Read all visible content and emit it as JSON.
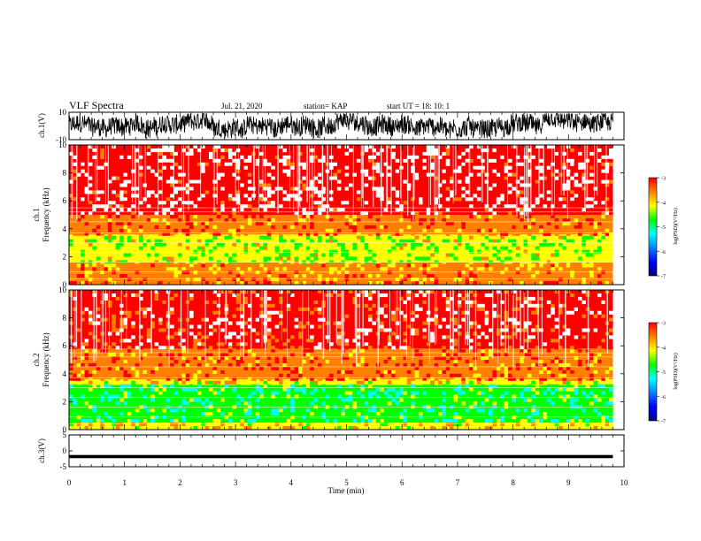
{
  "header": {
    "title": "VLF Spectra",
    "date": "Jul. 21, 2020",
    "station": "station= KAP",
    "start": "start UT = 18: 10: 1"
  },
  "chart_data": [
    {
      "type": "line",
      "panel": "ch1-waveform",
      "ylabel": "ch.1(V)",
      "ylim": [
        -10,
        10
      ],
      "yticks": [
        "10",
        "-10"
      ],
      "xlim": [
        0,
        10
      ],
      "x_end": 9.8,
      "series": [
        {
          "values": []
        }
      ]
    },
    {
      "type": "heatmap",
      "panel": "ch1-spectrogram",
      "ylabel_line1": "ch.1",
      "ylabel_line2": "Frequency (kHz)",
      "ylim": [
        0,
        10
      ],
      "yticks": [
        "0",
        "2",
        "4",
        "6",
        "8",
        "10"
      ],
      "xlim": [
        0,
        10
      ],
      "x_end": 9.8,
      "bands": [
        {
          "from": 0.0,
          "to": 0.9,
          "level": -4.0
        },
        {
          "from": 0.9,
          "to": 1.6,
          "level": -4.2
        },
        {
          "from": 1.6,
          "to": 3.6,
          "level": -4.7
        },
        {
          "from": 3.6,
          "to": 5.0,
          "level": -3.9
        },
        {
          "from": 5.0,
          "to": 10.0,
          "level": -3.3
        }
      ],
      "colorbar": {
        "label": "log(PSD)(V²/Hz)",
        "ticks": [
          "-3",
          "-4",
          "-5",
          "-6",
          "-7"
        ],
        "range": [
          -7,
          -3
        ]
      }
    },
    {
      "type": "heatmap",
      "panel": "ch2-spectrogram",
      "ylabel_line1": "ch.2",
      "ylabel_line2": "Frequency (kHz)",
      "ylim": [
        0,
        10
      ],
      "yticks": [
        "0",
        "2",
        "4",
        "6",
        "8",
        "10"
      ],
      "xlim": [
        0,
        10
      ],
      "x_end": 9.8,
      "bands": [
        {
          "from": 0.0,
          "to": 0.5,
          "level": -4.4
        },
        {
          "from": 0.5,
          "to": 3.2,
          "level": -5.1
        },
        {
          "from": 3.2,
          "to": 3.6,
          "level": -4.4
        },
        {
          "from": 3.6,
          "to": 5.8,
          "level": -3.9
        },
        {
          "from": 5.8,
          "to": 10.0,
          "level": -3.5
        }
      ],
      "colorbar": {
        "label": "log(PSD)(V²/Hz)",
        "ticks": [
          "-3",
          "-4",
          "-5",
          "-6",
          "-7"
        ],
        "range": [
          -7,
          -3
        ]
      }
    },
    {
      "type": "line",
      "panel": "ch3-waveform",
      "ylabel": "ch.3(V)",
      "ylim": [
        -5,
        5
      ],
      "yticks": [
        "5",
        "0",
        "-5"
      ],
      "xlim": [
        0,
        10
      ],
      "x_end": 9.8,
      "xlabel": "Time (min)",
      "xticks": [
        "0",
        "1",
        "2",
        "3",
        "4",
        "5",
        "6",
        "7",
        "8",
        "9",
        "10"
      ],
      "series": [
        {
          "level": -1.8,
          "spread": 0.5
        }
      ]
    }
  ],
  "colors": {
    "colormap": [
      "#000080",
      "#0000ff",
      "#0080ff",
      "#00ffff",
      "#00ff00",
      "#ffff00",
      "#ff8000",
      "#ff0000",
      "#ffffff"
    ],
    "axis": "#000000"
  }
}
